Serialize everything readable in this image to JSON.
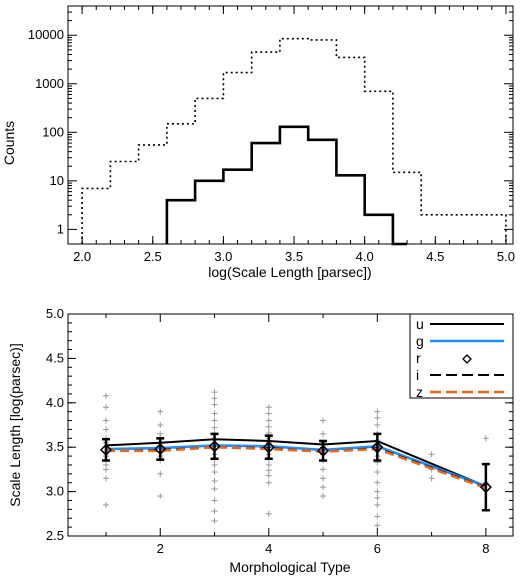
{
  "colors": {
    "u": "#000000",
    "g": "#1e90ff",
    "r": "#000000",
    "i": "#000000",
    "z": "#e8661d",
    "scatter": "#999999"
  },
  "chart_data": [
    {
      "type": "histogram",
      "xlabel": "log(Scale Length [parsec])",
      "ylabel": "Counts",
      "xlim": [
        1.9,
        5.05
      ],
      "ylim": [
        0.5,
        40000
      ],
      "yscale": "log",
      "xticks": [
        "2.0",
        "2.5",
        "3.0",
        "3.5",
        "4.0",
        "4.5",
        "5.0"
      ],
      "yticks": [
        "1",
        "10",
        "100",
        "1000",
        "10000"
      ],
      "series": [
        {
          "style": "dotted",
          "bin_width": 0.2,
          "bin_starts": [
            2.0,
            2.2,
            2.4,
            2.6,
            2.8,
            3.0,
            3.2,
            3.4,
            3.6,
            3.8,
            4.0,
            4.2,
            4.4,
            4.6,
            4.8
          ],
          "counts": [
            7,
            25,
            55,
            150,
            500,
            1700,
            4500,
            8500,
            8000,
            3500,
            700,
            15,
            2,
            2,
            2
          ]
        },
        {
          "style": "solid",
          "bin_width": 0.1,
          "bin_starts": [
            2.6,
            2.7,
            2.8,
            2.9,
            3.0,
            3.1,
            3.2,
            3.3,
            3.4,
            3.5,
            3.6,
            3.7,
            3.8,
            3.9,
            4.0,
            4.1,
            4.2
          ],
          "counts": [
            4,
            4,
            10,
            10,
            17,
            17,
            60,
            60,
            130,
            130,
            70,
            70,
            13,
            13,
            2,
            2,
            0.5
          ]
        }
      ]
    },
    {
      "type": "line",
      "xlabel": "Morphological Type",
      "ylabel": "Scale Length [log(parsec)]",
      "xlim": [
        0.3,
        8.5
      ],
      "ylim": [
        2.5,
        5.0
      ],
      "xticks": [
        "2",
        "4",
        "6",
        "8"
      ],
      "yticks": [
        "2.5",
        "3.0",
        "3.5",
        "4.0",
        "4.5",
        "5.0"
      ],
      "x": [
        1,
        2,
        3,
        4,
        5,
        6,
        8
      ],
      "series": [
        {
          "name": "u",
          "style": "solid",
          "values": [
            3.52,
            3.55,
            3.59,
            3.57,
            3.53,
            3.57,
            3.06
          ]
        },
        {
          "name": "g",
          "style": "solid",
          "values": [
            3.48,
            3.49,
            3.52,
            3.51,
            3.47,
            3.51,
            3.06
          ]
        },
        {
          "name": "r",
          "style": "diamond",
          "values": [
            3.47,
            3.48,
            3.51,
            3.5,
            3.46,
            3.5,
            3.05
          ]
        },
        {
          "name": "i",
          "style": "dashed",
          "values": [
            3.46,
            3.47,
            3.5,
            3.49,
            3.45,
            3.49,
            3.05
          ]
        },
        {
          "name": "z",
          "style": "dashed",
          "values": [
            3.46,
            3.46,
            3.5,
            3.48,
            3.45,
            3.48,
            3.04
          ]
        }
      ],
      "errorbars": [
        {
          "x": 1,
          "y": 3.47,
          "err": 0.12
        },
        {
          "x": 2,
          "y": 3.48,
          "err": 0.12
        },
        {
          "x": 3,
          "y": 3.51,
          "err": 0.14
        },
        {
          "x": 4,
          "y": 3.5,
          "err": 0.13
        },
        {
          "x": 5,
          "y": 3.46,
          "err": 0.11
        },
        {
          "x": 6,
          "y": 3.5,
          "err": 0.15
        },
        {
          "x": 8,
          "y": 3.05,
          "err": 0.26
        }
      ],
      "scatter": [
        {
          "x": 1,
          "y": 4.08
        },
        {
          "x": 1,
          "y": 3.95
        },
        {
          "x": 1,
          "y": 3.8
        },
        {
          "x": 1,
          "y": 3.7
        },
        {
          "x": 1,
          "y": 3.6
        },
        {
          "x": 1,
          "y": 3.55
        },
        {
          "x": 1,
          "y": 3.5
        },
        {
          "x": 1,
          "y": 3.45
        },
        {
          "x": 1,
          "y": 3.4
        },
        {
          "x": 1,
          "y": 3.3
        },
        {
          "x": 1,
          "y": 3.25
        },
        {
          "x": 1,
          "y": 3.15
        },
        {
          "x": 1,
          "y": 2.85
        },
        {
          "x": 2,
          "y": 3.9
        },
        {
          "x": 2,
          "y": 3.75
        },
        {
          "x": 2,
          "y": 3.65
        },
        {
          "x": 2,
          "y": 3.6
        },
        {
          "x": 2,
          "y": 3.55
        },
        {
          "x": 2,
          "y": 3.5
        },
        {
          "x": 2,
          "y": 3.45
        },
        {
          "x": 2,
          "y": 3.4
        },
        {
          "x": 2,
          "y": 3.35
        },
        {
          "x": 2,
          "y": 3.2
        },
        {
          "x": 2,
          "y": 2.95
        },
        {
          "x": 3,
          "y": 4.12
        },
        {
          "x": 3,
          "y": 4.05
        },
        {
          "x": 3,
          "y": 3.98
        },
        {
          "x": 3,
          "y": 3.88
        },
        {
          "x": 3,
          "y": 3.8
        },
        {
          "x": 3,
          "y": 3.72
        },
        {
          "x": 3,
          "y": 3.65
        },
        {
          "x": 3,
          "y": 3.58
        },
        {
          "x": 3,
          "y": 3.52
        },
        {
          "x": 3,
          "y": 3.47
        },
        {
          "x": 3,
          "y": 3.42
        },
        {
          "x": 3,
          "y": 3.36
        },
        {
          "x": 3,
          "y": 3.3
        },
        {
          "x": 3,
          "y": 3.22
        },
        {
          "x": 3,
          "y": 3.12
        },
        {
          "x": 3,
          "y": 3.03
        },
        {
          "x": 3,
          "y": 2.9
        },
        {
          "x": 3,
          "y": 2.78
        },
        {
          "x": 3,
          "y": 2.67
        },
        {
          "x": 4,
          "y": 3.95
        },
        {
          "x": 4,
          "y": 3.88
        },
        {
          "x": 4,
          "y": 3.8
        },
        {
          "x": 4,
          "y": 3.73
        },
        {
          "x": 4,
          "y": 3.66
        },
        {
          "x": 4,
          "y": 3.6
        },
        {
          "x": 4,
          "y": 3.55
        },
        {
          "x": 4,
          "y": 3.5
        },
        {
          "x": 4,
          "y": 3.46
        },
        {
          "x": 4,
          "y": 3.42
        },
        {
          "x": 4,
          "y": 3.37
        },
        {
          "x": 4,
          "y": 3.3
        },
        {
          "x": 4,
          "y": 3.24
        },
        {
          "x": 4,
          "y": 3.18
        },
        {
          "x": 4,
          "y": 3.1
        },
        {
          "x": 4,
          "y": 2.75
        },
        {
          "x": 5,
          "y": 3.8
        },
        {
          "x": 5,
          "y": 3.65
        },
        {
          "x": 5,
          "y": 3.55
        },
        {
          "x": 5,
          "y": 3.5
        },
        {
          "x": 5,
          "y": 3.42
        },
        {
          "x": 5,
          "y": 3.35
        },
        {
          "x": 5,
          "y": 3.25
        },
        {
          "x": 5,
          "y": 3.15
        },
        {
          "x": 5,
          "y": 3.05
        },
        {
          "x": 5,
          "y": 2.95
        },
        {
          "x": 6,
          "y": 3.9
        },
        {
          "x": 6,
          "y": 3.83
        },
        {
          "x": 6,
          "y": 3.75
        },
        {
          "x": 6,
          "y": 3.65
        },
        {
          "x": 6,
          "y": 3.58
        },
        {
          "x": 6,
          "y": 3.52
        },
        {
          "x": 6,
          "y": 3.45
        },
        {
          "x": 6,
          "y": 3.4
        },
        {
          "x": 6,
          "y": 3.33
        },
        {
          "x": 6,
          "y": 3.22
        },
        {
          "x": 6,
          "y": 3.1
        },
        {
          "x": 6,
          "y": 3.0
        },
        {
          "x": 6,
          "y": 2.93
        },
        {
          "x": 6,
          "y": 2.85
        },
        {
          "x": 6,
          "y": 2.72
        },
        {
          "x": 6,
          "y": 2.62
        },
        {
          "x": 7,
          "y": 3.42
        },
        {
          "x": 7,
          "y": 3.25
        },
        {
          "x": 7,
          "y": 3.15
        },
        {
          "x": 8,
          "y": 3.6
        },
        {
          "x": 8,
          "y": 3.1
        }
      ],
      "legend": {
        "position": "top-right",
        "entries": [
          "u",
          "g",
          "r",
          "i",
          "z"
        ]
      }
    }
  ]
}
